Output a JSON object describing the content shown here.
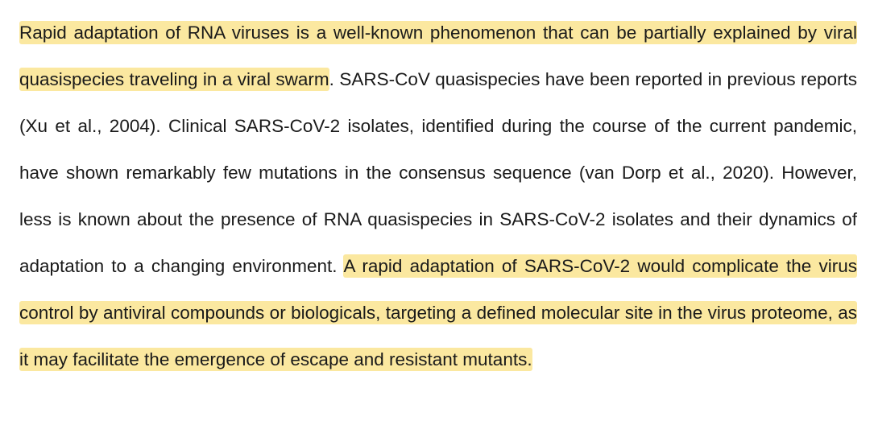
{
  "document": {
    "highlight_color": "#fbe8a0",
    "segments": [
      {
        "text": "Rapid adaptation of RNA viruses is a well-known phenomenon that can be partially explained by viral quasispecies traveling in a viral swarm",
        "highlighted": true
      },
      {
        "text": ". SARS-CoV quasispecies have been reported in previous reports (Xu et al., 2004). Clinical SARS-CoV-2 isolates, identified during the course of the current pandemic, have shown remarkably few mutations in the consensus sequence (van Dorp et al., 2020). However, less is known about the presence of RNA quasispecies in SARS-CoV-2 isolates and their dynamics of adaptation to a changing environment. ",
        "highlighted": false
      },
      {
        "text": "A rapid adaptation of SARS-CoV-2 would complicate the virus control by antiviral compounds or biologicals, targeting a defined molecular site in the virus proteome, as it may facilitate the emergence of escape and resistant mutants.",
        "highlighted": true
      }
    ]
  }
}
